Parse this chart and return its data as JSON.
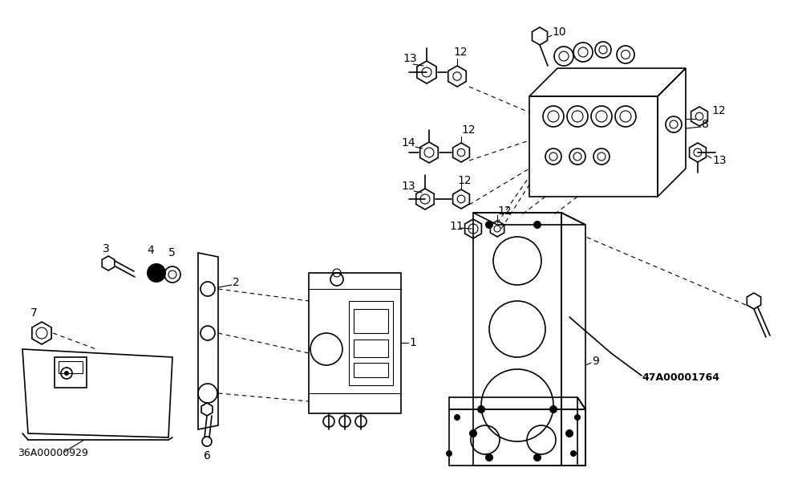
{
  "bg": "#ffffff",
  "lc": "#000000",
  "lw": 1.2,
  "tlw": 0.8,
  "fs": 10,
  "fsp": 9
}
